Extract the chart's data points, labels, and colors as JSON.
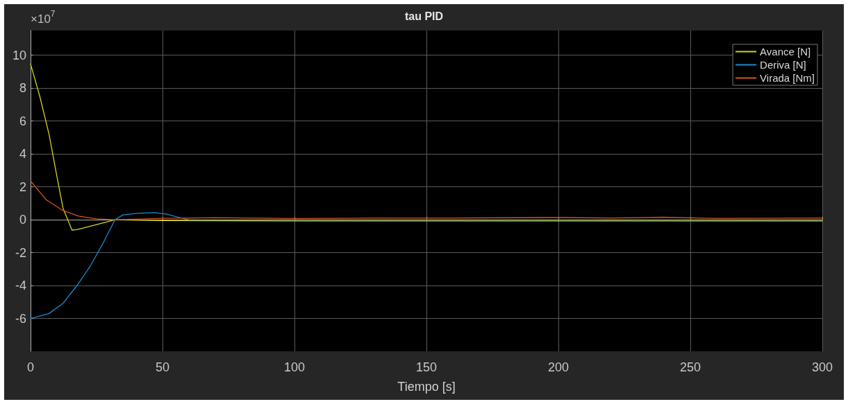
{
  "chart_data": {
    "type": "line",
    "title": "tau PID",
    "xlabel": "Tiempo [s]",
    "annotations": [
      "×10$^{7}$"
    ],
    "xlim": [
      0,
      300
    ],
    "xticks": [
      0,
      50,
      100,
      150,
      200,
      250,
      300
    ],
    "ylim": [
      -8,
      11.5
    ],
    "yticks": [
      -6,
      -4,
      -2,
      0,
      2,
      4,
      6,
      8,
      10
    ],
    "grid": true,
    "legend": "top right",
    "marker": "none",
    "line_style": "solid",
    "series": [
      {
        "name": "Avance [N]",
        "color": "#d4d41a",
        "x": [
          0,
          3.5,
          7,
          9.9,
          12.3,
          15.7,
          17.5,
          25,
          32,
          50,
          100,
          150,
          200,
          250,
          300
        ],
        "values": [
          9.46,
          7.5,
          5.2,
          2.7,
          0.7,
          -0.63,
          -0.6,
          -0.3,
          0,
          -0.05,
          -0.08,
          -0.08,
          -0.08,
          -0.08,
          -0.08
        ]
      },
      {
        "name": "Deriva [N]",
        "color": "#1a8ad4",
        "x": [
          0,
          7,
          12.3,
          17.6,
          22.5,
          27.4,
          32,
          35,
          41,
          47,
          51.8,
          56.6,
          60,
          100,
          150,
          200,
          250,
          300
        ],
        "values": [
          -6,
          -5.7,
          -5.08,
          -4,
          -2.85,
          -1.45,
          0,
          0.29,
          0.4,
          0.43,
          0.33,
          0.12,
          0,
          0,
          0,
          0,
          0,
          0
        ]
      },
      {
        "name": "Virada [Nm]",
        "color": "#d9531e",
        "x": [
          0,
          6,
          12,
          18.2,
          25,
          32,
          50,
          70,
          100,
          130,
          160,
          200,
          220,
          240,
          260,
          300
        ],
        "values": [
          2.35,
          1.2,
          0.58,
          0.22,
          0.05,
          0,
          0.08,
          0.12,
          0.07,
          0.1,
          0.1,
          0.14,
          0.1,
          0.15,
          0.08,
          0.1
        ]
      }
    ]
  }
}
